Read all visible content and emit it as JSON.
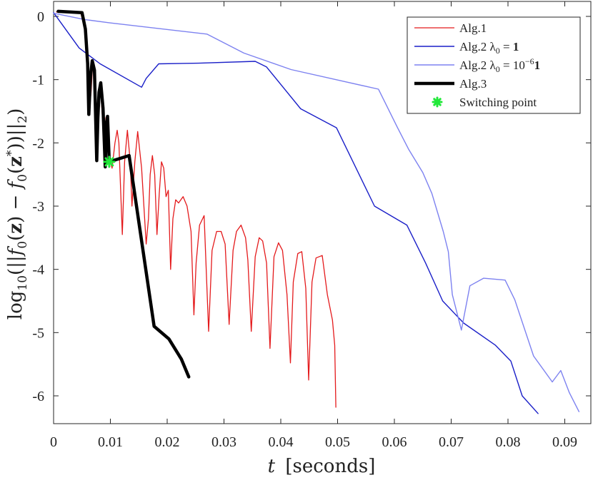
{
  "chart_data": {
    "type": "line",
    "xlabel": "t [seconds]",
    "ylabel": "log10(||f0(z) − f0(z*)||2)",
    "xlim": [
      0,
      0.0935
    ],
    "ylim": [
      -6.45,
      0.2
    ],
    "xticks": [
      0,
      0.01,
      0.02,
      0.03,
      0.04,
      0.05,
      0.06,
      0.07,
      0.08,
      0.09
    ],
    "xtick_labels": [
      "0",
      "0.01",
      "0.02",
      "0.03",
      "0.04",
      "0.05",
      "0.06",
      "0.07",
      "0.08",
      "0.09"
    ],
    "yticks": [
      0,
      -1,
      -2,
      -3,
      -4,
      -5,
      -6
    ],
    "ytick_labels": [
      "0",
      "-1",
      "-2",
      "-3",
      "-4",
      "-5",
      "-6"
    ],
    "grid": false,
    "legend_position": "top-right",
    "series": [
      {
        "name": "Alg.1",
        "color": "#e41a1c",
        "width": 1.3,
        "points": [
          [
            0.0005,
            0.07
          ],
          [
            0.0048,
            0.05
          ],
          [
            0.0055,
            -0.2
          ],
          [
            0.006,
            -0.7
          ],
          [
            0.0063,
            -1.45
          ],
          [
            0.0066,
            -1.2
          ],
          [
            0.0069,
            -0.7
          ],
          [
            0.0072,
            -0.9
          ],
          [
            0.0075,
            -2.2
          ],
          [
            0.0079,
            -1.3
          ],
          [
            0.0082,
            -1.05
          ],
          [
            0.0086,
            -1.6
          ],
          [
            0.009,
            -2.3
          ],
          [
            0.0092,
            -1.6
          ],
          [
            0.0095,
            -1.8
          ],
          [
            0.01,
            -2.3
          ],
          [
            0.0103,
            -2.4
          ],
          [
            0.0108,
            -2.0
          ],
          [
            0.0112,
            -1.8
          ],
          [
            0.0115,
            -2.0
          ],
          [
            0.0121,
            -3.45
          ],
          [
            0.0125,
            -2.3
          ],
          [
            0.013,
            -1.8
          ],
          [
            0.0135,
            -2.3
          ],
          [
            0.0138,
            -3.0
          ],
          [
            0.0143,
            -2.3
          ],
          [
            0.0148,
            -1.82
          ],
          [
            0.0155,
            -2.4
          ],
          [
            0.0163,
            -3.6
          ],
          [
            0.0167,
            -3.2
          ],
          [
            0.017,
            -2.5
          ],
          [
            0.0174,
            -2.2
          ],
          [
            0.0178,
            -2.5
          ],
          [
            0.0182,
            -3.45
          ],
          [
            0.0186,
            -2.8
          ],
          [
            0.019,
            -2.3
          ],
          [
            0.0194,
            -2.4
          ],
          [
            0.0198,
            -2.85
          ],
          [
            0.0202,
            -2.75
          ],
          [
            0.0206,
            -4.0
          ],
          [
            0.021,
            -3.2
          ],
          [
            0.0215,
            -2.9
          ],
          [
            0.022,
            -2.95
          ],
          [
            0.0228,
            -2.85
          ],
          [
            0.0235,
            -3.0
          ],
          [
            0.0242,
            -3.4
          ],
          [
            0.0247,
            -4.72
          ],
          [
            0.0251,
            -3.9
          ],
          [
            0.0257,
            -3.3
          ],
          [
            0.0265,
            -3.15
          ],
          [
            0.0273,
            -4.98
          ],
          [
            0.0279,
            -3.7
          ],
          [
            0.0287,
            -3.4
          ],
          [
            0.0295,
            -3.4
          ],
          [
            0.0302,
            -3.6
          ],
          [
            0.0309,
            -4.87
          ],
          [
            0.0316,
            -3.7
          ],
          [
            0.0322,
            -3.4
          ],
          [
            0.033,
            -3.3
          ],
          [
            0.0338,
            -3.5
          ],
          [
            0.0342,
            -3.85
          ],
          [
            0.0348,
            -4.98
          ],
          [
            0.0355,
            -3.8
          ],
          [
            0.0362,
            -3.5
          ],
          [
            0.0368,
            -3.55
          ],
          [
            0.0375,
            -3.9
          ],
          [
            0.0381,
            -5.25
          ],
          [
            0.0388,
            -3.8
          ],
          [
            0.0396,
            -3.58
          ],
          [
            0.0403,
            -3.7
          ],
          [
            0.0411,
            -4.4
          ],
          [
            0.0417,
            -5.48
          ],
          [
            0.0422,
            -4.2
          ],
          [
            0.043,
            -3.75
          ],
          [
            0.0437,
            -3.72
          ],
          [
            0.0444,
            -4.3
          ],
          [
            0.0449,
            -5.75
          ],
          [
            0.0455,
            -4.2
          ],
          [
            0.0462,
            -3.82
          ],
          [
            0.0473,
            -3.78
          ],
          [
            0.0482,
            -4.4
          ],
          [
            0.0491,
            -4.8
          ],
          [
            0.0495,
            -5.2
          ],
          [
            0.0497,
            -6.18
          ]
        ]
      },
      {
        "name": "Alg.2 λ0 = 1",
        "color": "#1a1fc8",
        "width": 1.4,
        "points": [
          [
            0,
            0.06
          ],
          [
            0.0045,
            -0.5
          ],
          [
            0.0082,
            -0.75
          ],
          [
            0.0155,
            -1.12
          ],
          [
            0.0163,
            -0.98
          ],
          [
            0.0185,
            -0.75
          ],
          [
            0.0255,
            -0.74
          ],
          [
            0.0355,
            -0.71
          ],
          [
            0.0375,
            -0.8
          ],
          [
            0.0435,
            -1.46
          ],
          [
            0.0498,
            -1.76
          ],
          [
            0.0565,
            -3.0
          ],
          [
            0.0622,
            -3.3
          ],
          [
            0.0655,
            -3.9
          ],
          [
            0.0685,
            -4.5
          ],
          [
            0.0722,
            -4.85
          ],
          [
            0.0778,
            -5.2
          ],
          [
            0.0805,
            -5.45
          ],
          [
            0.0825,
            -6.0
          ],
          [
            0.0853,
            -6.28
          ]
        ]
      },
      {
        "name": "Alg.2 λ0 = 10^−6 1",
        "color": "#7d82f0",
        "width": 1.4,
        "points": [
          [
            0,
            0.05
          ],
          [
            0.0055,
            -0.05
          ],
          [
            0.0098,
            -0.1
          ],
          [
            0.027,
            -0.28
          ],
          [
            0.0335,
            -0.58
          ],
          [
            0.0418,
            -0.84
          ],
          [
            0.0572,
            -1.15
          ],
          [
            0.0605,
            -1.75
          ],
          [
            0.0625,
            -2.1
          ],
          [
            0.065,
            -2.47
          ],
          [
            0.0666,
            -2.8
          ],
          [
            0.0686,
            -3.4
          ],
          [
            0.0695,
            -3.72
          ],
          [
            0.0702,
            -4.4
          ],
          [
            0.0718,
            -4.96
          ],
          [
            0.0733,
            -4.26
          ],
          [
            0.0757,
            -4.14
          ],
          [
            0.0795,
            -4.17
          ],
          [
            0.0812,
            -4.48
          ],
          [
            0.0845,
            -5.37
          ],
          [
            0.0878,
            -5.78
          ],
          [
            0.0893,
            -5.6
          ],
          [
            0.0908,
            -5.95
          ],
          [
            0.0925,
            -6.25
          ]
        ]
      },
      {
        "name": "Alg.3",
        "color": "#000000",
        "width": 4.5,
        "points": [
          [
            0.0008,
            0.08
          ],
          [
            0.005,
            0.06
          ],
          [
            0.0056,
            -0.2
          ],
          [
            0.006,
            -0.75
          ],
          [
            0.0062,
            -1.55
          ],
          [
            0.0065,
            -0.95
          ],
          [
            0.0068,
            -0.7
          ],
          [
            0.0072,
            -0.85
          ],
          [
            0.0076,
            -2.28
          ],
          [
            0.0078,
            -1.6
          ],
          [
            0.008,
            -1.2
          ],
          [
            0.0083,
            -1.05
          ],
          [
            0.0087,
            -1.45
          ],
          [
            0.0091,
            -2.38
          ],
          [
            0.0093,
            -1.7
          ],
          [
            0.0095,
            -1.58
          ],
          [
            0.0098,
            -2.3
          ],
          [
            0.0133,
            -2.2
          ],
          [
            0.0177,
            -4.9
          ],
          [
            0.0203,
            -5.1
          ],
          [
            0.0225,
            -5.42
          ],
          [
            0.0238,
            -5.7
          ]
        ]
      }
    ],
    "switching_point": {
      "name": "Switching point",
      "x": 0.0098,
      "y": -2.3,
      "color": "#22e83a"
    }
  },
  "legend": {
    "items": [
      {
        "label": "Alg.1",
        "color": "#e41a1c",
        "width": 1.3
      },
      {
        "label": "Alg.2 λ0 = 1",
        "color": "#1a1fc8",
        "width": 1.4
      },
      {
        "label": "Alg.2 λ0 = 10−61",
        "color": "#7d82f0",
        "width": 1.4
      },
      {
        "label": "Alg.3",
        "color": "#000000",
        "width": 4.5
      },
      {
        "label": "Switching point",
        "color": "#22e83a",
        "marker": "asterisk"
      }
    ]
  },
  "text": {
    "xlabel_var": "t",
    "xlabel_unit": "[seconds]",
    "ylabel_log": "log",
    "ylabel_base": "10",
    "ylabel_open": "(||",
    "ylabel_f": "f",
    "ylabel_sub0": "0",
    "ylabel_z": "z",
    "ylabel_minus": "− ",
    "ylabel_star": "*",
    "ylabel_close": "||",
    "ylabel_norm": "2"
  }
}
